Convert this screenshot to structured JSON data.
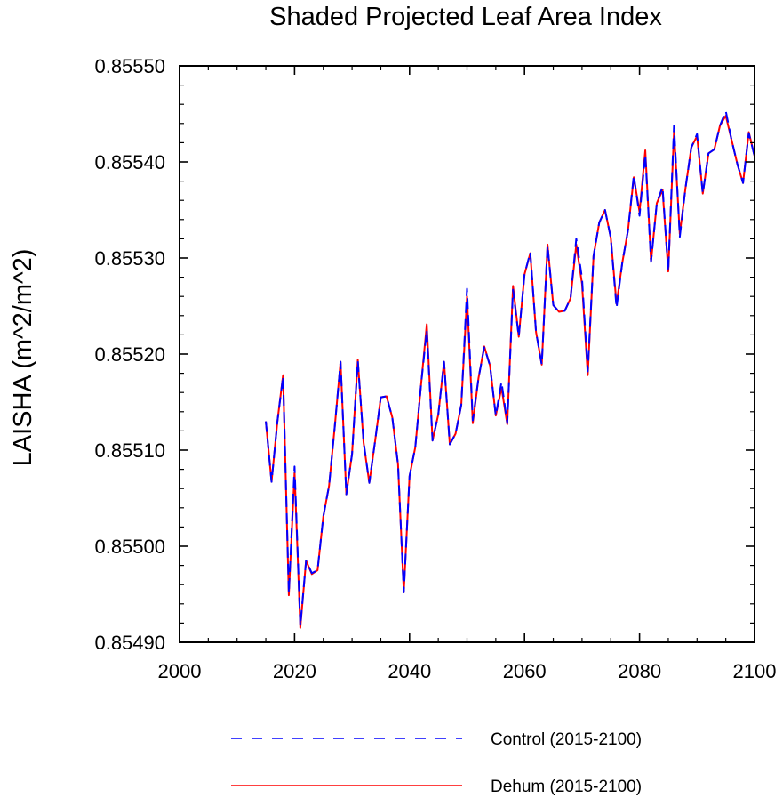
{
  "chart_data": {
    "type": "line",
    "title": "Shaded Projected Leaf Area Index",
    "xlabel": "",
    "ylabel": "LAISHA  (m^2/m^2)",
    "xlim": [
      2000,
      2100
    ],
    "ylim": [
      0.8549,
      0.8555
    ],
    "x_ticks": [
      2000,
      2020,
      2040,
      2060,
      2080,
      2100
    ],
    "x_tick_labels": [
      "2000",
      "2020",
      "2040",
      "2060",
      "2080",
      "2100"
    ],
    "y_ticks": [
      0.8549,
      0.855,
      0.8551,
      0.8552,
      0.8553,
      0.8554,
      0.8555
    ],
    "y_tick_labels": [
      "0.85490",
      "0.85500",
      "0.85510",
      "0.85520",
      "0.85530",
      "0.85540",
      "0.85550"
    ],
    "x": [
      2015,
      2016,
      2017,
      2018,
      2019,
      2020,
      2021,
      2022,
      2023,
      2024,
      2025,
      2026,
      2027,
      2028,
      2029,
      2030,
      2031,
      2032,
      2033,
      2034,
      2035,
      2036,
      2037,
      2038,
      2039,
      2040,
      2041,
      2042,
      2043,
      2044,
      2045,
      2046,
      2047,
      2048,
      2049,
      2050,
      2051,
      2052,
      2053,
      2054,
      2055,
      2056,
      2057,
      2058,
      2059,
      2060,
      2061,
      2062,
      2063,
      2064,
      2065,
      2066,
      2067,
      2068,
      2069,
      2070,
      2071,
      2072,
      2073,
      2074,
      2075,
      2076,
      2077,
      2078,
      2079,
      2080,
      2081,
      2082,
      2083,
      2084,
      2085,
      2086,
      2087,
      2088,
      2089,
      2090,
      2091,
      2092,
      2093,
      2094,
      2095,
      2096,
      2097,
      2098,
      2099,
      2100
    ],
    "series": [
      {
        "name": "Control (2015-2100)",
        "color": "#0000ff",
        "style": "dashed",
        "values": [
          0.85513,
          0.855067,
          0.855129,
          0.855177,
          0.854951,
          0.855083,
          0.854917,
          0.854985,
          0.854972,
          0.854975,
          0.855031,
          0.855063,
          0.855125,
          0.855192,
          0.855054,
          0.855096,
          0.855193,
          0.855109,
          0.855066,
          0.855109,
          0.855155,
          0.855156,
          0.855134,
          0.855085,
          0.854952,
          0.855073,
          0.855103,
          0.855168,
          0.855225,
          0.85511,
          0.855137,
          0.855192,
          0.855106,
          0.855117,
          0.855147,
          0.855268,
          0.855131,
          0.855175,
          0.855207,
          0.855188,
          0.855136,
          0.855171,
          0.855128,
          0.855267,
          0.855218,
          0.855283,
          0.855306,
          0.855223,
          0.855189,
          0.855313,
          0.855251,
          0.855244,
          0.855245,
          0.855258,
          0.85532,
          0.855279,
          0.855182,
          0.855302,
          0.855337,
          0.85535,
          0.855321,
          0.855248,
          0.855295,
          0.855329,
          0.855386,
          0.855344,
          0.855408,
          0.855296,
          0.855357,
          0.855374,
          0.855286,
          0.855438,
          0.855322,
          0.855373,
          0.855415,
          0.855429,
          0.855367,
          0.855409,
          0.855413,
          0.855438,
          0.855453,
          0.855423,
          0.855398,
          0.855378,
          0.85543,
          0.855406
        ]
      },
      {
        "name": "Dehum (2015-2100)",
        "color": "#ff0000",
        "style": "solid",
        "values": [
          0.85513,
          0.855067,
          0.855129,
          0.855178,
          0.854949,
          0.855077,
          0.854915,
          0.854985,
          0.854971,
          0.854975,
          0.855031,
          0.855063,
          0.855125,
          0.855192,
          0.855054,
          0.855096,
          0.855194,
          0.855108,
          0.855066,
          0.855109,
          0.855155,
          0.855156,
          0.855134,
          0.855085,
          0.854952,
          0.855073,
          0.855103,
          0.855168,
          0.855231,
          0.85511,
          0.855137,
          0.855192,
          0.855106,
          0.855117,
          0.855147,
          0.85526,
          0.855128,
          0.855175,
          0.855208,
          0.855188,
          0.855136,
          0.855165,
          0.855127,
          0.855271,
          0.855218,
          0.855283,
          0.855305,
          0.855223,
          0.855189,
          0.855314,
          0.855251,
          0.855244,
          0.855245,
          0.855258,
          0.855314,
          0.855273,
          0.855178,
          0.855302,
          0.855337,
          0.85535,
          0.855321,
          0.855252,
          0.855295,
          0.855329,
          0.855384,
          0.855348,
          0.855412,
          0.855296,
          0.855357,
          0.855371,
          0.855286,
          0.855432,
          0.855325,
          0.855373,
          0.855415,
          0.855427,
          0.855367,
          0.855409,
          0.855413,
          0.855438,
          0.855448,
          0.855423,
          0.855398,
          0.855378,
          0.855431,
          0.855406
        ]
      }
    ],
    "legend": [
      {
        "label": "Control (2015-2100)",
        "color": "#0000ff",
        "style": "dashed"
      },
      {
        "label": "Dehum (2015-2100)",
        "color": "#ff0000",
        "style": "solid"
      }
    ],
    "legend_position": "bottom",
    "grid": false
  }
}
